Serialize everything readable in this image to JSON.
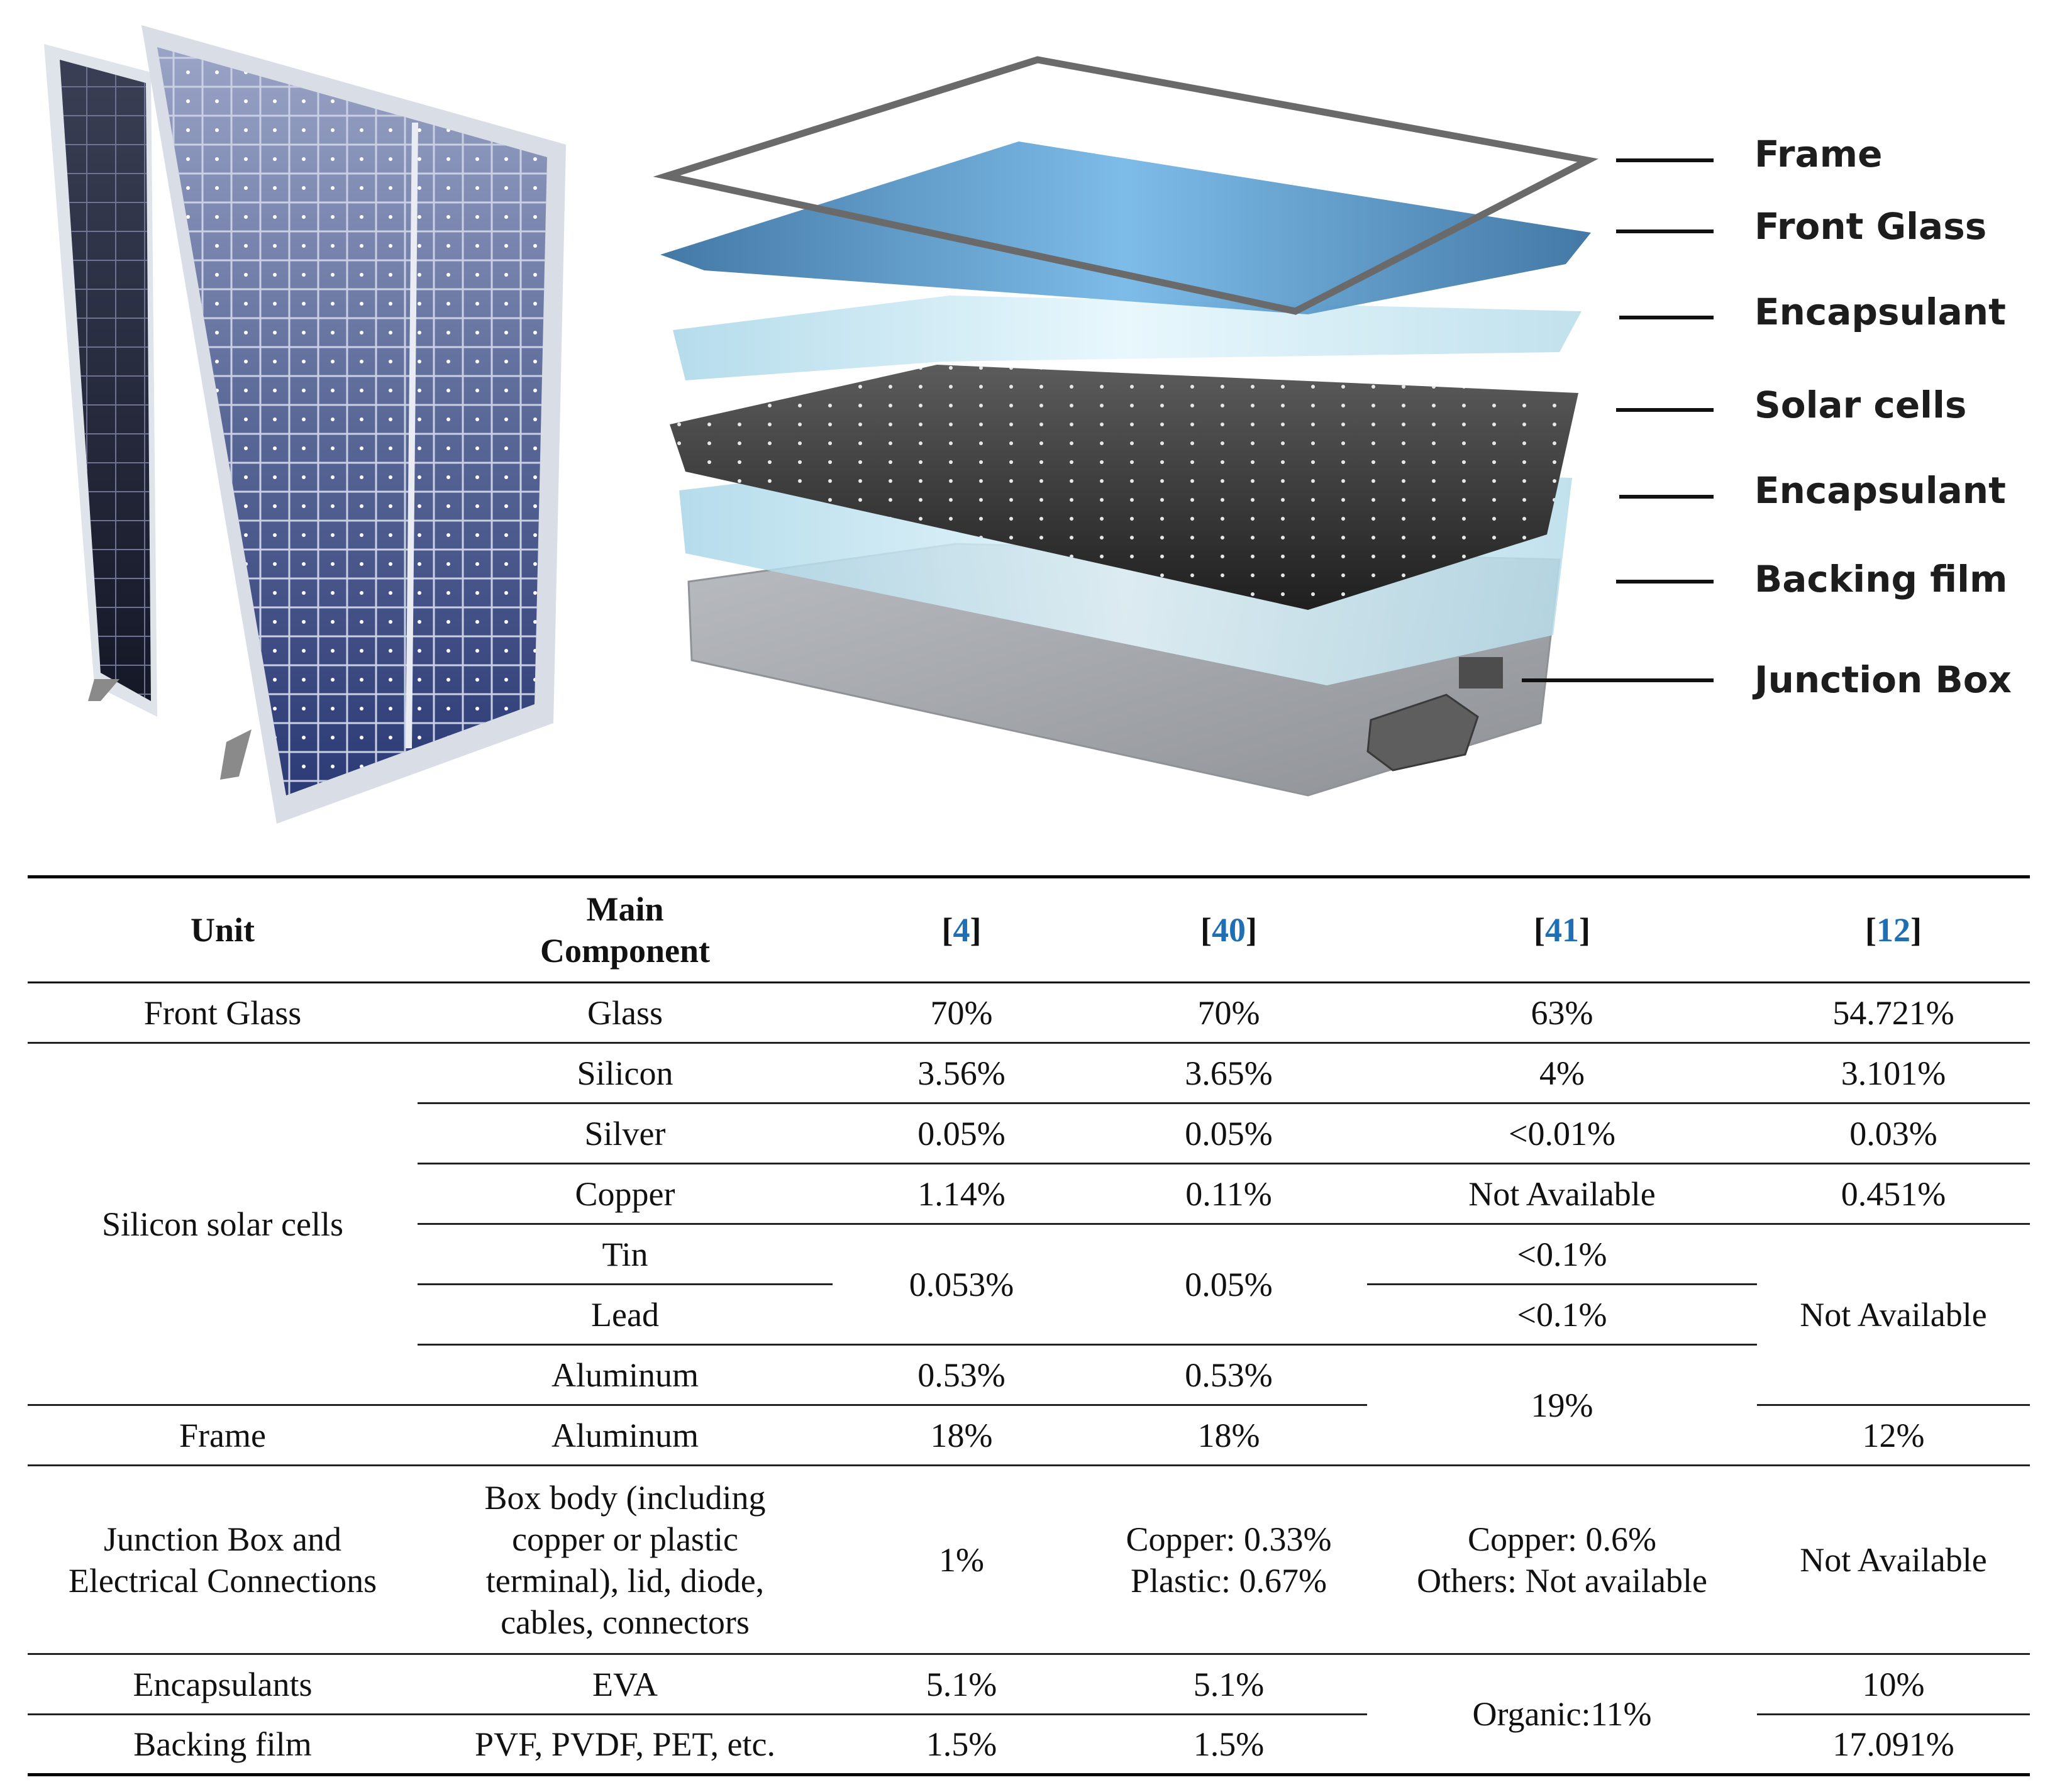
{
  "figure": {
    "layers": [
      "Frame",
      "Front Glass",
      "Encapsulant",
      "Solar cells",
      "Encapsulant",
      "Backing film",
      "Junction Box"
    ]
  },
  "table": {
    "headers": {
      "unit": "Unit",
      "component_line1": "Main",
      "component_line2": "Component",
      "refs": [
        "4",
        "40",
        "41",
        "12"
      ]
    },
    "rows": {
      "front_glass": {
        "unit": "Front Glass",
        "component": "Glass",
        "v4": "70%",
        "v40": "70%",
        "v41": "63%",
        "v12": "54.721%"
      },
      "solar_cells_unit": "Silicon solar cells",
      "silicon": {
        "component": "Silicon",
        "v4": "3.56%",
        "v40": "3.65%",
        "v41": "4%",
        "v12": "3.101%"
      },
      "silver": {
        "component": "Silver",
        "v4": "0.05%",
        "v40": "0.05%",
        "v41": "<0.01%",
        "v12": "0.03%"
      },
      "copper": {
        "component": "Copper",
        "v4": "1.14%",
        "v40": "0.11%",
        "v41": "Not Available",
        "v12": "0.451%"
      },
      "tin": {
        "component": "Tin",
        "v41": "<0.1%"
      },
      "lead": {
        "component": "Lead",
        "v41": "<0.1%"
      },
      "tin_lead_v4": "0.053%",
      "tin_lead_v40": "0.05%",
      "tin_lead_al_v12": "Not Available",
      "aluminum": {
        "component": "Aluminum",
        "v4": "0.53%",
        "v40": "0.53%"
      },
      "al_frame_v41": "19%",
      "frame": {
        "unit": "Frame",
        "component": "Aluminum",
        "v4": "18%",
        "v40": "18%",
        "v12": "12%"
      },
      "junction": {
        "unit_line1": "Junction Box and",
        "unit_line2": "Electrical Connections",
        "component_lines": [
          "Box body (including",
          "copper or plastic",
          "terminal), lid, diode,",
          "cables, connectors"
        ],
        "v4": "1%",
        "v40_line1": "Copper: 0.33%",
        "v40_line2": "Plastic: 0.67%",
        "v41_line1": "Copper: 0.6%",
        "v41_line2": "Others: Not available",
        "v12": "Not Available"
      },
      "encapsulants": {
        "unit": "Encapsulants",
        "component": "EVA",
        "v4": "5.1%",
        "v40": "5.1%",
        "v12": "10%"
      },
      "enc_back_v41": "Organic:11%",
      "backing": {
        "unit": "Backing film",
        "component": "PVF, PVDF, PET, etc.",
        "v4": "1.5%",
        "v40": "1.5%",
        "v12": "17.091%"
      }
    }
  }
}
